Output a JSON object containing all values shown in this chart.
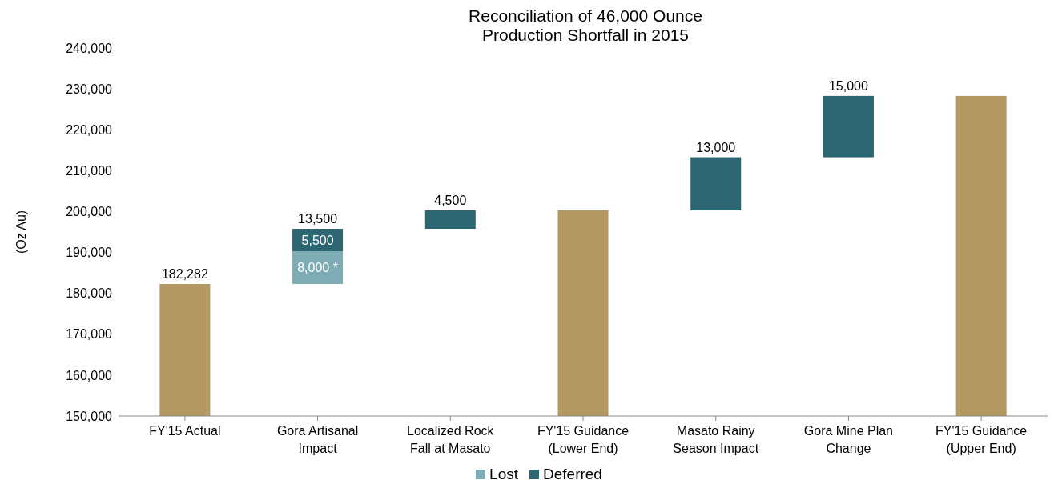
{
  "chart_data": {
    "type": "bar",
    "title": "Reconciliation of 46,000 Ounce\nProduction Shortfall in 2015",
    "ylabel": "(Oz Au)",
    "categories": [
      "FY'15 Actual",
      "Gora Artisanal Impact",
      "Localized Rock Fall at Masato",
      "FY'15 Guidance (Lower End)",
      "Masato Rainy Season Impact",
      "Gora Mine Plan Change",
      "FY'15 Guidance (Upper End)"
    ],
    "series": [
      {
        "color": "#b39861",
        "values": [
          182282,
          null,
          null,
          200282,
          null,
          null,
          228282
        ],
        "value_labels": [
          "182,282",
          null,
          null,
          null,
          null,
          null,
          null
        ]
      },
      {
        "name": "Lost",
        "color": "#7eacb4",
        "values": [
          null,
          8000,
          null,
          null,
          null,
          null,
          null
        ],
        "base": [
          null,
          182282,
          null,
          null,
          null,
          null,
          null
        ],
        "value_labels": [
          null,
          "8,000 *",
          null,
          null,
          null,
          null,
          null
        ]
      },
      {
        "name": "Deferred",
        "color": "#2c6673",
        "values": [
          null,
          5500,
          4500,
          null,
          13000,
          15000,
          null
        ],
        "base": [
          null,
          190282,
          195782,
          null,
          200282,
          213282,
          null
        ],
        "value_labels": [
          null,
          "5,500",
          "4,500",
          null,
          "13,000",
          "15,000",
          null
        ]
      }
    ],
    "totals": [
      null,
      "13,500",
      null,
      null,
      null,
      null,
      null
    ],
    "ylim": [
      150000,
      240000
    ],
    "yticks": [
      {
        "value": 150000,
        "label": "150,000"
      },
      {
        "value": 160000,
        "label": "160,000"
      },
      {
        "value": 170000,
        "label": "170,000"
      },
      {
        "value": 180000,
        "label": "180,000"
      },
      {
        "value": 190000,
        "label": "190,000"
      },
      {
        "value": 200000,
        "label": "200,000"
      },
      {
        "value": 210000,
        "label": "210,000"
      },
      {
        "value": 220000,
        "label": "220,000"
      },
      {
        "value": 230000,
        "label": "230,000"
      },
      {
        "value": 240000,
        "label": "240,000"
      }
    ],
    "legend": "bottom"
  }
}
